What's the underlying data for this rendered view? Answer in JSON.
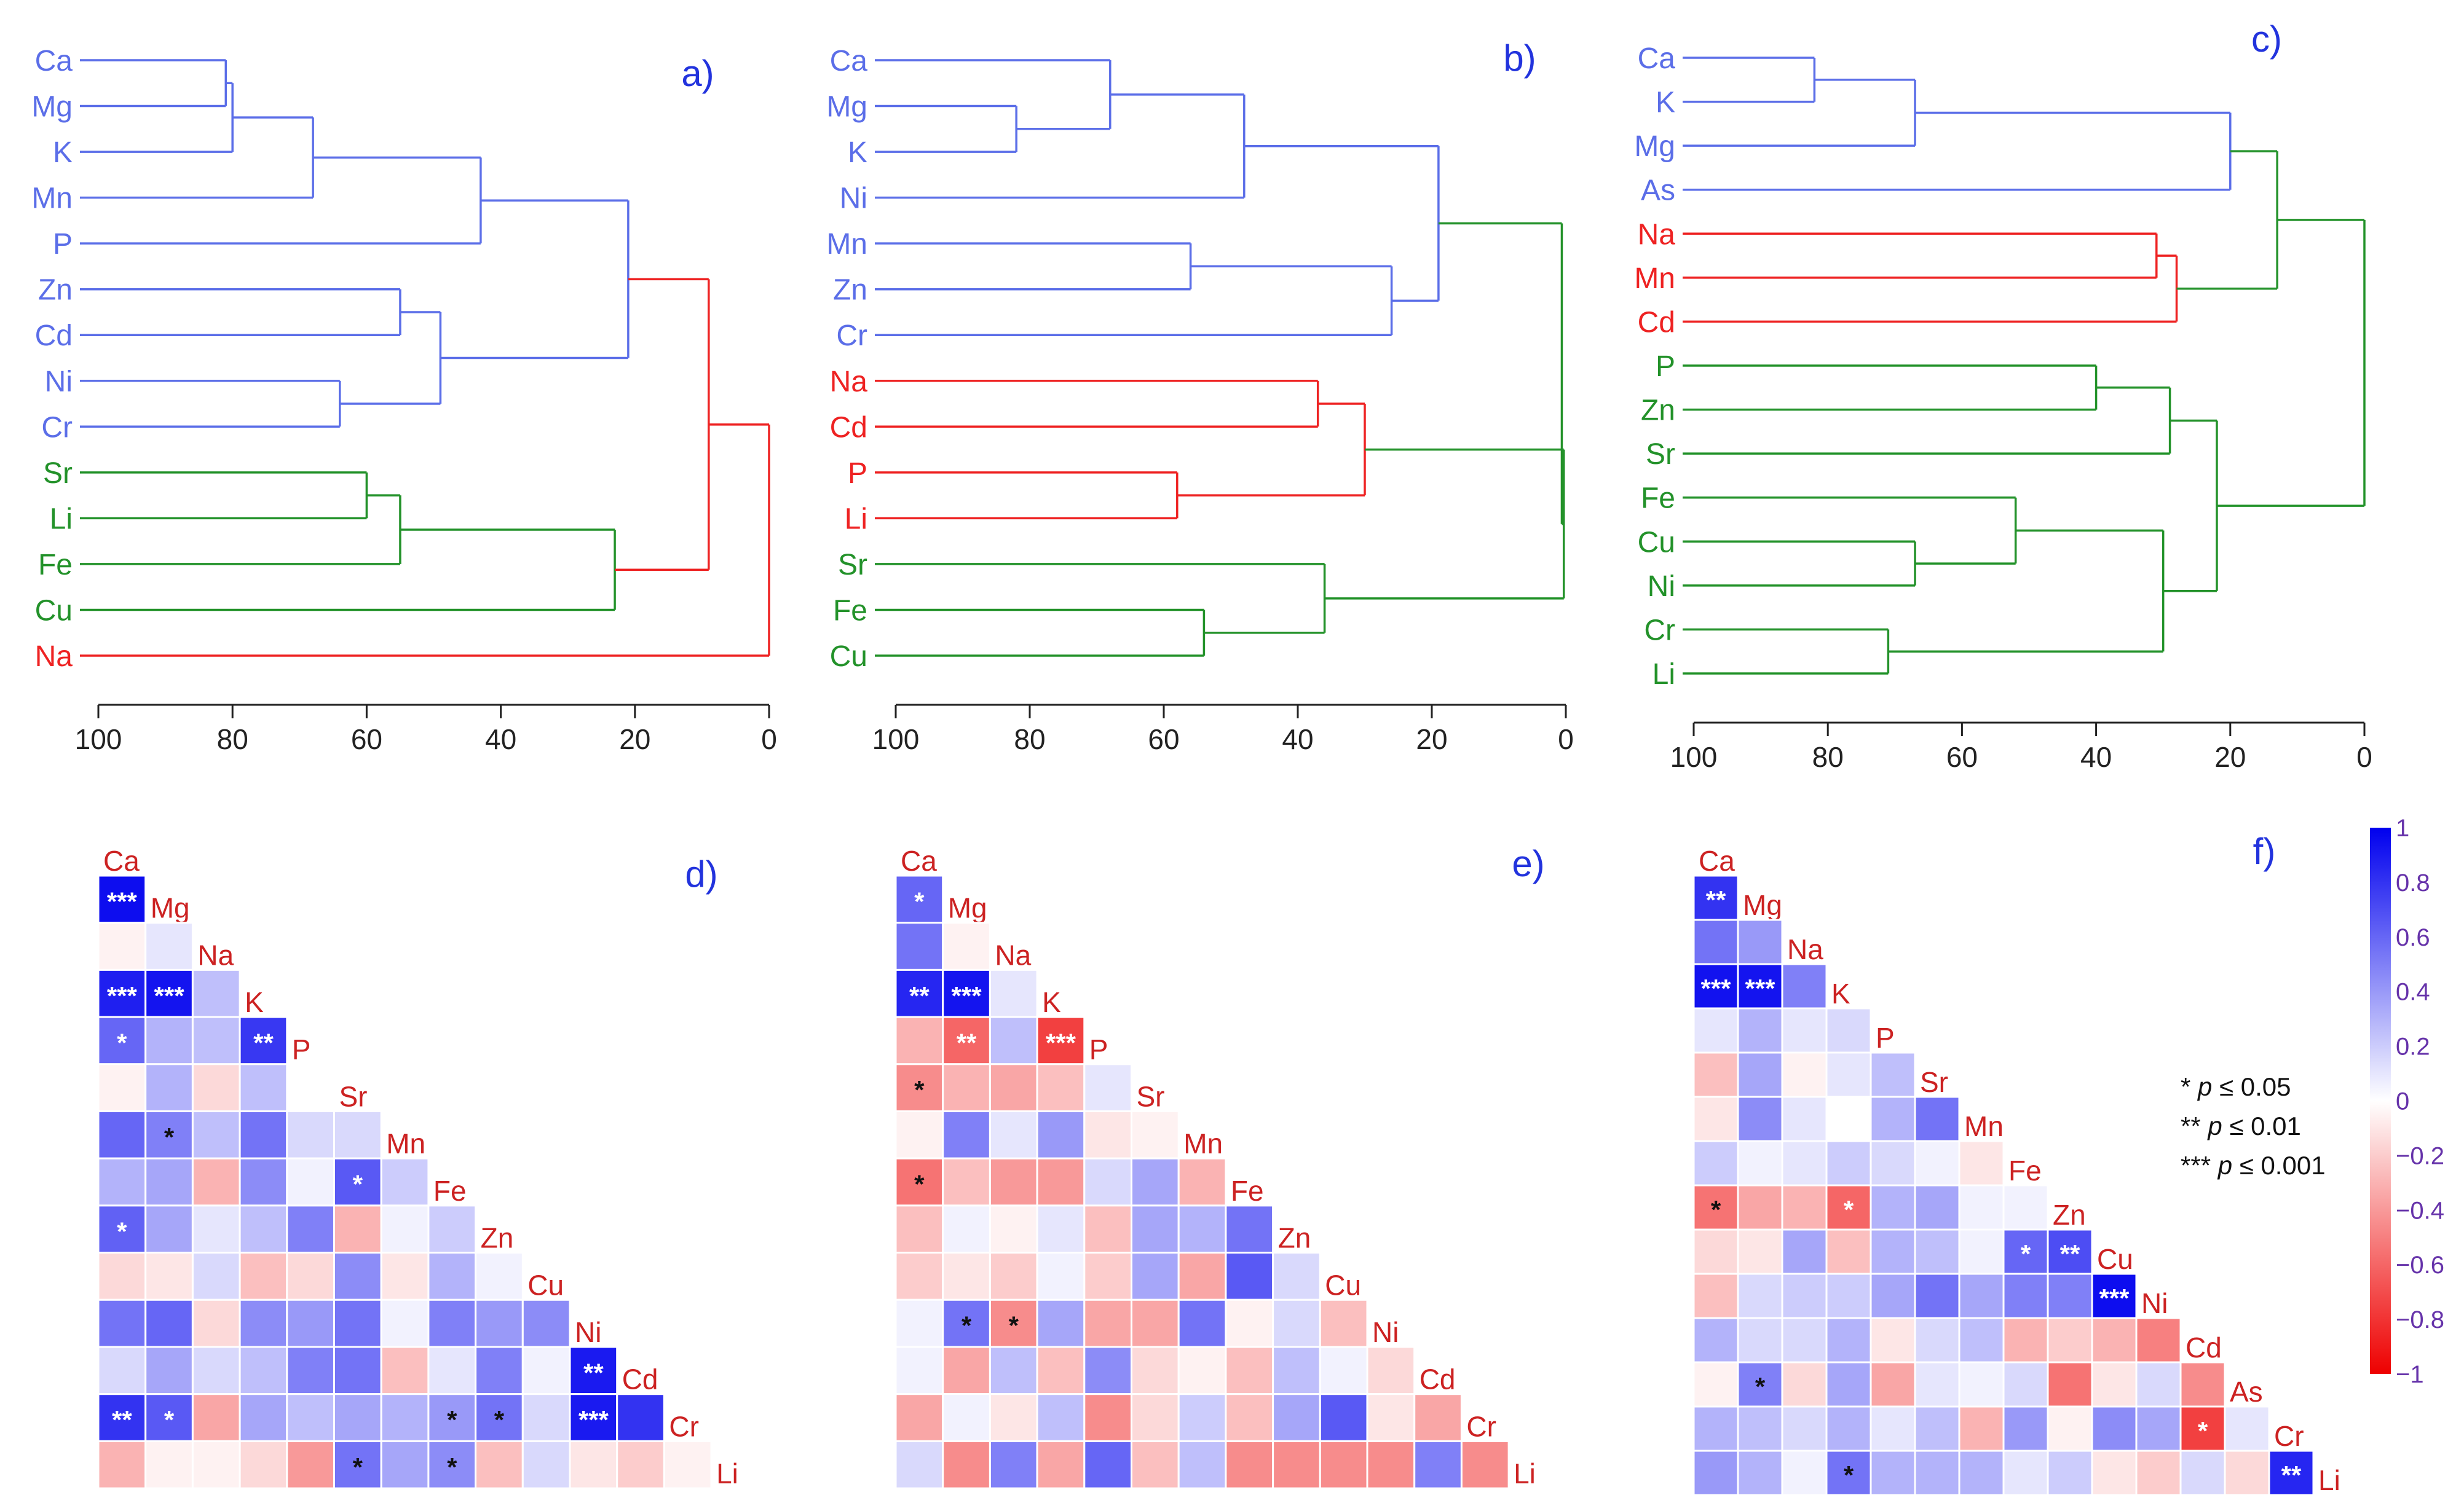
{
  "colors": {
    "blue_group": "#5b6ee8",
    "red_group": "#ee2222",
    "green_group": "#23922a",
    "panel_letter": "#2233dd",
    "axis": "#222222",
    "corr_label": "#cc2222",
    "legend_text": "#6633aa"
  },
  "chart_data": [
    {
      "type": "dendrogram",
      "panel": "a)",
      "leaves": [
        "Ca",
        "Mg",
        "K",
        "Mn",
        "P",
        "Zn",
        "Cd",
        "Ni",
        "Cr",
        "Sr",
        "Li",
        "Fe",
        "Cu",
        "Na"
      ],
      "leaf_groups": [
        "blue",
        "blue",
        "blue",
        "blue",
        "blue",
        "blue",
        "blue",
        "blue",
        "blue",
        "green",
        "green",
        "green",
        "green",
        "red"
      ],
      "merges": [
        {
          "a": 0,
          "b": 1,
          "h": 81,
          "g": "blue"
        },
        {
          "a": 14,
          "b": 2,
          "h": 80,
          "g": "blue"
        },
        {
          "a": 15,
          "b": 3,
          "h": 68,
          "g": "blue"
        },
        {
          "a": 16,
          "b": 4,
          "h": 43,
          "g": "blue"
        },
        {
          "a": 5,
          "b": 6,
          "h": 55,
          "g": "blue"
        },
        {
          "a": 7,
          "b": 8,
          "h": 64,
          "g": "blue"
        },
        {
          "a": 18,
          "b": 19,
          "h": 49,
          "g": "blue"
        },
        {
          "a": 17,
          "b": 20,
          "h": 21,
          "g": "blue"
        },
        {
          "a": 9,
          "b": 10,
          "h": 60,
          "g": "green"
        },
        {
          "a": 22,
          "b": 11,
          "h": 55,
          "g": "green"
        },
        {
          "a": 23,
          "b": 12,
          "h": 23,
          "g": "green"
        },
        {
          "a": 21,
          "b": 24,
          "h": 9,
          "g": "red"
        },
        {
          "a": 25,
          "b": 13,
          "h": 0,
          "g": "red"
        }
      ],
      "axis": {
        "min": 0,
        "max": 100,
        "ticks": [
          100,
          80,
          60,
          40,
          20,
          0
        ]
      }
    },
    {
      "type": "dendrogram",
      "panel": "b)",
      "leaves": [
        "Ca",
        "Mg",
        "K",
        "Ni",
        "Mn",
        "Zn",
        "Cr",
        "Na",
        "Cd",
        "P",
        "Li",
        "Sr",
        "Fe",
        "Cu"
      ],
      "leaf_groups": [
        "blue",
        "blue",
        "blue",
        "blue",
        "blue",
        "blue",
        "blue",
        "red",
        "red",
        "red",
        "red",
        "green",
        "green",
        "green"
      ],
      "merges": [
        {
          "a": 1,
          "b": 2,
          "h": 82,
          "g": "blue"
        },
        {
          "a": 0,
          "b": 14,
          "h": 68,
          "g": "blue"
        },
        {
          "a": 15,
          "b": 3,
          "h": 48,
          "g": "blue"
        },
        {
          "a": 4,
          "b": 5,
          "h": 56,
          "g": "blue"
        },
        {
          "a": 17,
          "b": 6,
          "h": 26,
          "g": "blue"
        },
        {
          "a": 16,
          "b": 18,
          "h": 19,
          "g": "blue"
        },
        {
          "a": 7,
          "b": 8,
          "h": 37,
          "g": "red"
        },
        {
          "a": 9,
          "b": 10,
          "h": 58,
          "g": "red"
        },
        {
          "a": 20,
          "b": 21,
          "h": 30,
          "g": "red"
        },
        {
          "a": 12,
          "b": 13,
          "h": 54,
          "g": "green"
        },
        {
          "a": 11,
          "b": 23,
          "h": 36,
          "g": "green"
        },
        {
          "a": 22,
          "b": 24,
          "h": 0.3,
          "g": "green"
        },
        {
          "a": 19,
          "b": 25,
          "h": 0.6,
          "g": "green"
        }
      ],
      "axis": {
        "min": 0,
        "max": 100,
        "ticks": [
          100,
          80,
          60,
          40,
          20,
          0
        ]
      }
    },
    {
      "type": "dendrogram",
      "panel": "c)",
      "leaves": [
        "Ca",
        "K",
        "Mg",
        "As",
        "Na",
        "Mn",
        "Cd",
        "P",
        "Zn",
        "Sr",
        "Fe",
        "Cu",
        "Ni",
        "Cr",
        "Li"
      ],
      "leaf_groups": [
        "blue",
        "blue",
        "blue",
        "blue",
        "red",
        "red",
        "red",
        "green",
        "green",
        "green",
        "green",
        "green",
        "green",
        "green",
        "green"
      ],
      "merges": [
        {
          "a": 0,
          "b": 1,
          "h": 82,
          "g": "blue"
        },
        {
          "a": 15,
          "b": 2,
          "h": 67,
          "g": "blue"
        },
        {
          "a": 16,
          "b": 3,
          "h": 20,
          "g": "blue"
        },
        {
          "a": 4,
          "b": 5,
          "h": 31,
          "g": "red"
        },
        {
          "a": 18,
          "b": 6,
          "h": 28,
          "g": "red"
        },
        {
          "a": 17,
          "b": 19,
          "h": 13,
          "g": "green"
        },
        {
          "a": 7,
          "b": 8,
          "h": 40,
          "g": "green"
        },
        {
          "a": 21,
          "b": 9,
          "h": 29,
          "g": "green"
        },
        {
          "a": 11,
          "b": 12,
          "h": 67,
          "g": "green"
        },
        {
          "a": 10,
          "b": 23,
          "h": 52,
          "g": "green"
        },
        {
          "a": 13,
          "b": 14,
          "h": 71,
          "g": "green"
        },
        {
          "a": 24,
          "b": 25,
          "h": 30,
          "g": "green"
        },
        {
          "a": 22,
          "b": 26,
          "h": 22,
          "g": "green"
        },
        {
          "a": 20,
          "b": 27,
          "h": 0,
          "g": "green"
        }
      ],
      "axis": {
        "min": 0,
        "max": 100,
        "ticks": [
          100,
          80,
          60,
          40,
          20,
          0
        ]
      }
    },
    {
      "type": "heatmap",
      "panel": "d)",
      "labels": [
        "Ca",
        "Mg",
        "Na",
        "K",
        "P",
        "Sr",
        "Mn",
        "Fe",
        "Zn",
        "Cu",
        "Ni",
        "Cd",
        "Cr",
        "Li"
      ],
      "values": [
        [
          0.95
        ],
        [
          -0.05,
          0.1
        ],
        [
          0.88,
          0.92,
          0.25
        ],
        [
          0.6,
          0.3,
          0.25,
          0.78
        ],
        [
          -0.05,
          0.3,
          -0.15,
          0.25
        ],
        [
          0.6,
          0.5,
          0.25,
          0.55,
          0.15,
          0.15
        ],
        [
          0.3,
          0.35,
          -0.3,
          0.45,
          0.05,
          0.65,
          0.2
        ],
        [
          0.62,
          0.35,
          0.1,
          0.25,
          0.5,
          -0.3,
          0.05,
          0.2
        ],
        [
          -0.15,
          -0.1,
          0.15,
          -0.25,
          -0.15,
          0.45,
          -0.1,
          0.3,
          0.05
        ],
        [
          0.55,
          0.6,
          -0.15,
          0.45,
          0.4,
          0.55,
          0.05,
          0.5,
          0.4,
          0.45
        ],
        [
          0.15,
          0.35,
          0.15,
          0.25,
          0.5,
          0.55,
          -0.25,
          0.1,
          0.5,
          0.05,
          0.9
        ],
        [
          0.8,
          0.65,
          -0.35,
          0.35,
          0.25,
          0.35,
          0.3,
          0.4,
          0.55,
          0.15,
          0.9,
          0.8
        ],
        [
          -0.3,
          -0.05,
          -0.05,
          -0.15,
          -0.4,
          0.55,
          0.35,
          0.45,
          -0.25,
          0.15,
          -0.1,
          -0.2,
          -0.05
        ]
      ],
      "stars": [
        [
          "***"
        ],
        [
          "",
          ""
        ],
        [
          "***",
          "***",
          ""
        ],
        [
          "*",
          "",
          "",
          "**"
        ],
        [
          "",
          "",
          "",
          ""
        ],
        [
          "",
          "*",
          "",
          "",
          "",
          ""
        ],
        [
          "",
          "",
          "",
          "",
          "",
          "*",
          ""
        ],
        [
          "*",
          "",
          "",
          "",
          "",
          "",
          "",
          ""
        ],
        [
          "",
          "",
          "",
          "",
          "",
          "",
          "",
          "",
          ""
        ],
        [
          "",
          "",
          "",
          "",
          "",
          "",
          "",
          "",
          "",
          ""
        ],
        [
          "",
          "",
          "",
          "",
          "",
          "",
          "",
          "",
          "",
          "",
          "**"
        ],
        [
          "**",
          "*",
          "",
          "",
          "",
          "",
          "",
          "*",
          "*",
          "",
          "***",
          ""
        ],
        [
          "",
          "",
          "",
          "",
          "",
          "*",
          "",
          "*",
          "",
          "",
          "",
          "",
          ""
        ]
      ]
    },
    {
      "type": "heatmap",
      "panel": "e)",
      "labels": [
        "Ca",
        "Mg",
        "Na",
        "K",
        "P",
        "Sr",
        "Mn",
        "Fe",
        "Zn",
        "Cu",
        "Ni",
        "Cd",
        "Cr",
        "Li"
      ],
      "values": [
        [
          0.6
        ],
        [
          0.55,
          -0.05
        ],
        [
          0.85,
          0.92,
          0.1
        ],
        [
          -0.3,
          -0.6,
          0.25,
          -0.75
        ],
        [
          -0.45,
          -0.3,
          -0.35,
          -0.25,
          0.1
        ],
        [
          -0.05,
          0.5,
          0.1,
          0.4,
          -0.1,
          -0.05
        ],
        [
          -0.55,
          -0.25,
          -0.4,
          -0.4,
          0.15,
          0.35,
          -0.3
        ],
        [
          -0.25,
          0.05,
          -0.05,
          0.1,
          -0.25,
          0.35,
          0.3,
          0.55
        ],
        [
          -0.2,
          -0.1,
          -0.2,
          0.05,
          -0.2,
          0.35,
          -0.35,
          0.65,
          0.15
        ],
        [
          0.05,
          0.55,
          -0.45,
          0.35,
          -0.35,
          -0.35,
          0.55,
          -0.05,
          0.15,
          -0.25
        ],
        [
          0.05,
          -0.35,
          0.25,
          -0.25,
          0.45,
          -0.15,
          -0.05,
          -0.25,
          0.25,
          0.05,
          -0.15
        ],
        [
          -0.35,
          0.05,
          -0.1,
          0.25,
          -0.45,
          -0.15,
          0.2,
          -0.25,
          0.35,
          0.65,
          -0.1,
          -0.35
        ],
        [
          0.15,
          -0.45,
          0.5,
          -0.35,
          0.6,
          -0.25,
          0.25,
          -0.45,
          -0.45,
          -0.45,
          -0.45,
          0.5,
          -0.45
        ]
      ],
      "stars": [
        [
          "*"
        ],
        [
          "",
          ""
        ],
        [
          "**",
          "***",
          ""
        ],
        [
          "",
          "**",
          "",
          "***"
        ],
        [
          "*",
          "",
          "",
          ""
        ],
        [
          "",
          "",
          "",
          "",
          "",
          ""
        ],
        [
          "*",
          "",
          "",
          "",
          "",
          "",
          ""
        ],
        [
          "",
          "",
          "",
          "",
          "",
          "",
          "",
          ""
        ],
        [
          "",
          "",
          "",
          "",
          "",
          "",
          "",
          "",
          ""
        ],
        [
          "",
          "*",
          "*",
          "",
          "",
          "",
          "",
          "",
          "",
          ""
        ],
        [
          "",
          "",
          "",
          "",
          "",
          "",
          "",
          "",
          "",
          "",
          ""
        ],
        [
          "",
          "",
          "",
          "",
          "",
          "",
          "",
          "",
          "",
          "",
          "",
          ""
        ],
        [
          "",
          "",
          "",
          "",
          "",
          "",
          "",
          "",
          "",
          "",
          "",
          "",
          ""
        ]
      ]
    },
    {
      "type": "heatmap",
      "panel": "f)",
      "labels": [
        "Ca",
        "Mg",
        "Na",
        "K",
        "P",
        "Sr",
        "Mn",
        "Fe",
        "Zn",
        "Cu",
        "Ni",
        "Cd",
        "As",
        "Cr",
        "Li"
      ],
      "values": [
        [
          0.8
        ],
        [
          0.55,
          0.4
        ],
        [
          0.93,
          0.92,
          0.5
        ],
        [
          0.1,
          0.3,
          0.1,
          0.15
        ],
        [
          -0.25,
          0.35,
          -0.05,
          0.1,
          0.25
        ],
        [
          -0.1,
          0.45,
          0.1,
          0.0,
          0.3,
          0.55
        ],
        [
          0.2,
          0.05,
          0.1,
          0.2,
          0.15,
          0.05,
          -0.1
        ],
        [
          -0.55,
          -0.35,
          -0.3,
          -0.6,
          0.3,
          0.35,
          0.05,
          0.05
        ],
        [
          -0.15,
          -0.1,
          0.35,
          -0.25,
          0.3,
          0.25,
          0.05,
          0.6,
          0.7
        ],
        [
          -0.25,
          0.15,
          0.2,
          0.2,
          0.35,
          0.55,
          0.35,
          0.5,
          0.5,
          0.95
        ],
        [
          0.3,
          0.15,
          0.15,
          0.3,
          -0.1,
          0.15,
          0.25,
          -0.3,
          -0.2,
          -0.3,
          -0.5
        ],
        [
          -0.05,
          0.5,
          -0.15,
          0.35,
          -0.35,
          0.1,
          0.05,
          0.15,
          -0.55,
          -0.1,
          0.15,
          -0.45
        ],
        [
          0.3,
          0.25,
          0.15,
          0.3,
          0.1,
          0.25,
          -0.3,
          0.4,
          -0.05,
          0.45,
          0.35,
          -0.75,
          0.1
        ],
        [
          0.4,
          0.3,
          0.05,
          0.55,
          0.3,
          0.3,
          0.3,
          0.1,
          0.2,
          -0.1,
          -0.2,
          0.15,
          -0.15,
          0.85
        ]
      ],
      "stars": [
        [
          "**"
        ],
        [
          "",
          ""
        ],
        [
          "***",
          "***",
          ""
        ],
        [
          "",
          "",
          "",
          ""
        ],
        [
          "",
          "",
          "",
          "",
          ""
        ],
        [
          "",
          "",
          "",
          "",
          "",
          ""
        ],
        [
          "",
          "",
          "",
          "",
          "",
          "",
          ""
        ],
        [
          "*",
          "",
          "",
          "*",
          "",
          "",
          "",
          ""
        ],
        [
          "",
          "",
          "",
          "",
          "",
          "",
          "",
          "*",
          "**"
        ],
        [
          "",
          "",
          "",
          "",
          "",
          "",
          "",
          "",
          "",
          "***"
        ],
        [
          "",
          "",
          "",
          "",
          "",
          "",
          "",
          "",
          "",
          "",
          ""
        ],
        [
          "",
          "*",
          "",
          "",
          "",
          "",
          "",
          "",
          "",
          "",
          "",
          ""
        ],
        [
          "",
          "",
          "",
          "",
          "",
          "",
          "",
          "",
          "",
          "",
          "",
          "*",
          ""
        ],
        [
          "",
          "",
          "",
          "*",
          "",
          "",
          "",
          "",
          "",
          "",
          "",
          "",
          "",
          "**"
        ]
      ]
    }
  ],
  "significance_legend": [
    {
      "stars": "*",
      "p": "p",
      "rel": "≤ 0.05"
    },
    {
      "stars": "**",
      "p": "p",
      "rel": "≤ 0.01"
    },
    {
      "stars": "***",
      "p": "p",
      "rel": "≤ 0.001"
    }
  ],
  "colorbar": {
    "ticks": [
      "1",
      "0.8",
      "0.6",
      "0.4",
      "0.2",
      "0",
      "−0.2",
      "−0.4",
      "−0.6",
      "−0.8",
      "−1"
    ],
    "stops": [
      "#ee0000",
      "#ffffff",
      "#0000ee"
    ]
  }
}
